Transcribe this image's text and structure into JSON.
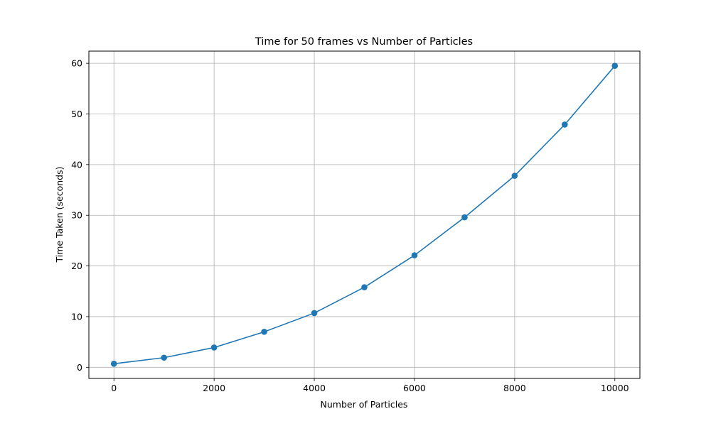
{
  "chart_data": {
    "type": "line",
    "title": "Time for 50 frames vs Number of Particles",
    "xlabel": "Number of Particles",
    "ylabel": "Time Taken (seconds)",
    "xlim": [
      -500,
      10500
    ],
    "ylim": [
      -2.2,
      62.4
    ],
    "grid": true,
    "x_ticks": [
      0,
      2000,
      4000,
      6000,
      8000,
      10000
    ],
    "y_ticks": [
      0,
      10,
      20,
      30,
      40,
      50,
      60
    ],
    "series": [
      {
        "color": "#1f77b4",
        "marker": "circle",
        "x": [
          0,
          1000,
          2000,
          3000,
          4000,
          5000,
          6000,
          7000,
          8000,
          9000,
          10000
        ],
        "y": [
          0.7,
          1.9,
          3.9,
          7.0,
          10.7,
          15.8,
          22.1,
          29.6,
          37.8,
          47.9,
          59.5
        ]
      }
    ]
  }
}
